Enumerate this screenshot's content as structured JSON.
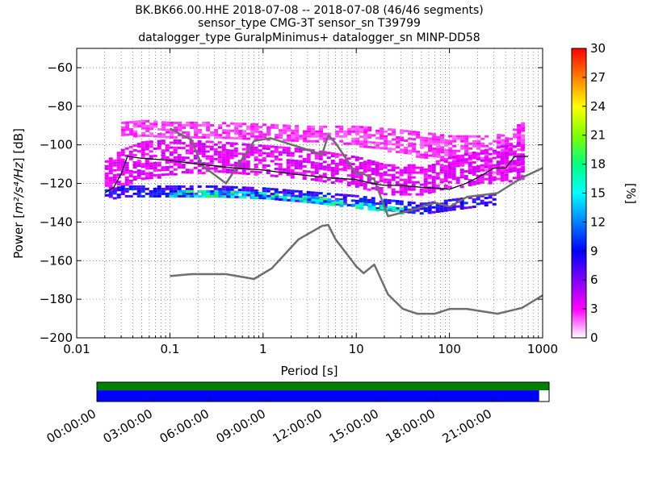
{
  "chart_data": {
    "type": "heatmap",
    "title_lines": [
      "BK.BK66.00.HHE   2018-07-08 -- 2018-07-08  (46/46 segments)",
      "sensor_type CMG-3T sensor_sn T39799",
      "datalogger_type GuralpMinimus+ datalogger_sn MINP-DD58"
    ],
    "xlabel": "Period [s]",
    "ylabel_prefix": "Power [",
    "ylabel_math": "m²/s⁴/Hz",
    "ylabel_suffix": "] [dB]",
    "x_scale": "log",
    "xlim": [
      0.01,
      1000
    ],
    "ylim": [
      -200,
      -50
    ],
    "x_ticks": [
      {
        "value": 0.01,
        "label": "0.01"
      },
      {
        "value": 0.1,
        "label": "0.1"
      },
      {
        "value": 1,
        "label": "1"
      },
      {
        "value": 10,
        "label": "10"
      },
      {
        "value": 100,
        "label": "100"
      },
      {
        "value": 1000,
        "label": "1000"
      }
    ],
    "y_ticks": [
      {
        "value": -200,
        "label": "−200"
      },
      {
        "value": -180,
        "label": "−180"
      },
      {
        "value": -160,
        "label": "−160"
      },
      {
        "value": -140,
        "label": "−140"
      },
      {
        "value": -120,
        "label": "−120"
      },
      {
        "value": -100,
        "label": "−100"
      },
      {
        "value": -80,
        "label": "−80"
      },
      {
        "value": -60,
        "label": "−60"
      }
    ],
    "colorbar": {
      "label": "[%]",
      "range": [
        0,
        30
      ],
      "ticks": [
        {
          "value": 0,
          "label": "0"
        },
        {
          "value": 3,
          "label": "3"
        },
        {
          "value": 6,
          "label": "6"
        },
        {
          "value": 9,
          "label": "9"
        },
        {
          "value": 12,
          "label": "12"
        },
        {
          "value": 15,
          "label": "15"
        },
        {
          "value": 18,
          "label": "18"
        },
        {
          "value": 21,
          "label": "21"
        },
        {
          "value": 24,
          "label": "24"
        },
        {
          "value": 27,
          "label": "27"
        },
        {
          "value": 30,
          "label": "30"
        }
      ],
      "colors": [
        "#ffffff",
        "#ff00ff",
        "#8000ff",
        "#0000ff",
        "#0080ff",
        "#00ffff",
        "#00ff80",
        "#80ff00",
        "#ffff00",
        "#ff8000",
        "#ff0000"
      ]
    },
    "density_bands": [
      {
        "name": "upper-spread",
        "x": [
          0.03,
          0.05,
          0.1,
          0.3,
          1,
          3,
          10,
          30,
          100,
          300,
          600
        ],
        "center": [
          -92,
          -91,
          -92,
          -92,
          -93,
          -94,
          -95,
          -98,
          -102,
          -105,
          -100
        ],
        "halfwidth": [
          4,
          4,
          4,
          4,
          4,
          4,
          5,
          6,
          7,
          10,
          12
        ],
        "pct": 2
      },
      {
        "name": "mid-spread",
        "x": [
          0.02,
          0.03,
          0.05,
          0.1,
          0.3,
          1,
          3,
          10,
          20,
          50,
          100,
          300,
          600
        ],
        "center": [
          -118,
          -112,
          -108,
          -106,
          -106,
          -108,
          -110,
          -114,
          -118,
          -118,
          -114,
          -110,
          -108
        ],
        "halfwidth": [
          10,
          10,
          10,
          9,
          8,
          8,
          8,
          8,
          8,
          8,
          8,
          9,
          10
        ],
        "pct": 3
      },
      {
        "name": "core",
        "x": [
          0.02,
          0.03,
          0.05,
          0.1,
          0.3,
          1,
          3,
          10,
          20,
          50,
          100,
          300
        ],
        "center": [
          -126,
          -124,
          -124,
          -124,
          -124,
          -125,
          -127,
          -129,
          -131,
          -133,
          -131,
          -128
        ],
        "halfwidth": [
          3,
          3,
          3,
          3,
          3,
          3,
          3,
          3,
          3,
          3,
          3,
          3
        ],
        "pct": 7
      },
      {
        "name": "peak",
        "x": [
          0.1,
          0.3,
          1,
          3,
          10,
          15,
          30
        ],
        "center": [
          -125,
          -125,
          -126,
          -128,
          -131,
          -132,
          -134
        ],
        "halfwidth": [
          1.5,
          1.5,
          1.5,
          1.5,
          1.5,
          1.5,
          1.5
        ],
        "pct": 13
      }
    ],
    "mode_line": {
      "name": "mode",
      "x": [
        0.02,
        0.025,
        0.03,
        0.035,
        0.05,
        0.1,
        0.2,
        0.5,
        1,
        2,
        5,
        10,
        15,
        20,
        30,
        50,
        100,
        150,
        200,
        300,
        400,
        500,
        700
      ],
      "y": [
        -125,
        -122,
        -115,
        -106,
        -107,
        -108,
        -110,
        -112,
        -113,
        -115,
        -117,
        -118,
        -120,
        -121,
        -121,
        -122,
        -123,
        -120,
        -117,
        -112,
        -112,
        -106,
        -106
      ]
    },
    "nhnm": {
      "name": "NHNM",
      "x": [
        0.1,
        0.17,
        0.22,
        0.4,
        0.8,
        1.2,
        2.4,
        4.3,
        5,
        6,
        10,
        12,
        15.6,
        21.9,
        31.6,
        45,
        70,
        101,
        154,
        328,
        600,
        1000
      ],
      "y": [
        -91.5,
        -97.4,
        -110.5,
        -120,
        -98,
        -96.5,
        -101,
        -105,
        -95,
        -99,
        -115,
        -115,
        -118,
        -137,
        -135,
        -133,
        -130,
        -132,
        -127,
        -125,
        -117,
        -112
      ]
    },
    "nlnm": {
      "name": "NLNM",
      "x": [
        0.1,
        0.17,
        0.4,
        0.8,
        1.24,
        2.4,
        4.3,
        5,
        6,
        10,
        12,
        15.6,
        21.9,
        31.6,
        45,
        70,
        101,
        154,
        328,
        600,
        1000
      ],
      "y": [
        -168,
        -167,
        -167,
        -169.5,
        -164,
        -149,
        -142,
        -141.5,
        -149,
        -163,
        -166.5,
        -162,
        -177.5,
        -185,
        -187.5,
        -187.5,
        -185,
        -185,
        -187.5,
        -184.5,
        -178
      ]
    },
    "coverage": {
      "time_ticks": [
        {
          "label": "00:00:00",
          "hours": 0
        },
        {
          "label": "03:00:00",
          "hours": 3
        },
        {
          "label": "06:00:00",
          "hours": 6
        },
        {
          "label": "09:00:00",
          "hours": 9
        },
        {
          "label": "12:00:00",
          "hours": 12
        },
        {
          "label": "15:00:00",
          "hours": 15
        },
        {
          "label": "18:00:00",
          "hours": 18
        },
        {
          "label": "21:00:00",
          "hours": 21
        }
      ],
      "span_hours": 24,
      "data_fraction": 1.0,
      "psd_fraction": 0.978,
      "data_color": "#008000",
      "psd_color": "#0000ff"
    }
  }
}
